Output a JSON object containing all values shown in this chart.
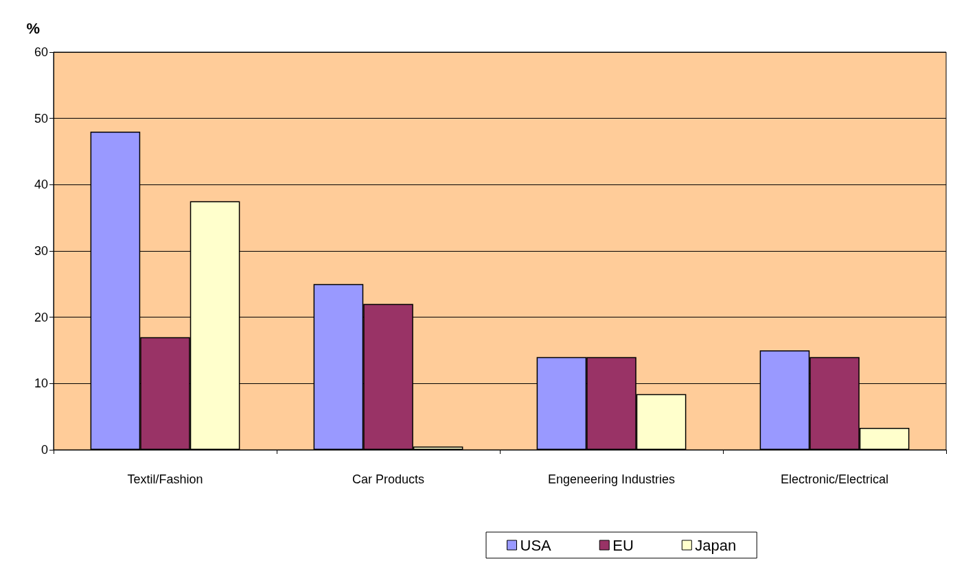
{
  "chart_data": {
    "type": "bar",
    "ylabel": "%",
    "categories": [
      "Textil/Fashion",
      "Car Products",
      "Engeneering Industries",
      "Electronic/Electrical"
    ],
    "series": [
      {
        "name": "USA",
        "color": "#9999ff",
        "values": [
          48,
          25,
          14,
          15
        ]
      },
      {
        "name": "EU",
        "color": "#993366",
        "values": [
          17,
          22,
          14,
          14
        ]
      },
      {
        "name": "Japan",
        "color": "#ffffcc",
        "values": [
          37.5,
          0.5,
          8.4,
          3.3
        ]
      }
    ],
    "ylim": [
      0,
      60
    ],
    "yticks": [
      0,
      10,
      20,
      30,
      40,
      50,
      60
    ],
    "grid": "y",
    "legend": "bottom"
  }
}
